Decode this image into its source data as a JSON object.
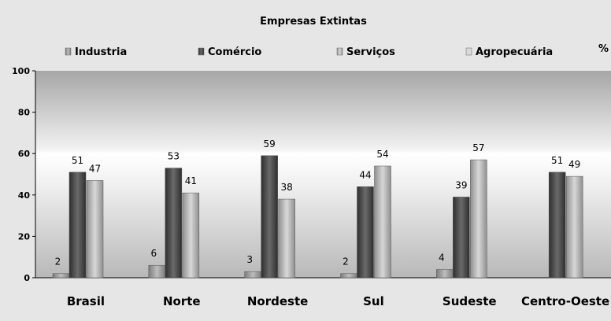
{
  "chart_data": {
    "type": "bar",
    "title": "Empresas Extintas",
    "unit_label": "%",
    "categories": [
      "Brasil",
      "Norte",
      "Nordeste",
      "Sul",
      "Sudeste",
      "Centro-Oeste"
    ],
    "series": [
      {
        "name": "Industria",
        "values": [
          2,
          6,
          3,
          2,
          4,
          null
        ],
        "color": "#a8a8a8"
      },
      {
        "name": "Comércio",
        "values": [
          51,
          53,
          59,
          44,
          39,
          51
        ],
        "color": "#4a4a4a"
      },
      {
        "name": "Serviços",
        "values": [
          47,
          41,
          38,
          54,
          57,
          49
        ],
        "color": "#bdbdbd"
      },
      {
        "name": "Agropecuária",
        "values": [
          null,
          null,
          null,
          null,
          null,
          null
        ],
        "color": "#e0e0e0"
      }
    ],
    "yticks": [
      0,
      20,
      40,
      60,
      80,
      100
    ],
    "ylim": [
      0,
      100
    ],
    "grid": false,
    "legend_position": "top"
  }
}
